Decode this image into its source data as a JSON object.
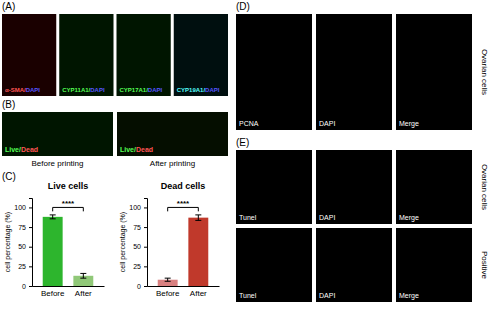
{
  "chart_data": [
    {
      "type": "bar",
      "title": "Live cells",
      "categories": [
        "Before",
        "After"
      ],
      "values": [
        88,
        13
      ],
      "errors": [
        2.5,
        3.0
      ],
      "colors": [
        "#2db52d",
        "#90c878"
      ],
      "ylabel": "cell percentage (%)",
      "ylim": [
        0,
        112
      ],
      "yticks": [
        0,
        25,
        50,
        75,
        100
      ],
      "annotations": [
        {
          "text": "****",
          "y": 100,
          "y0": 95
        }
      ]
    },
    {
      "type": "bar",
      "title": "Dead cells",
      "categories": [
        "Before",
        "After"
      ],
      "values": [
        8,
        87
      ],
      "errors": [
        2.0,
        3.5
      ],
      "colors": [
        "#d98080",
        "#c0392b"
      ],
      "ylabel": "cell percentage (%)",
      "ylim": [
        0,
        112
      ],
      "yticks": [
        0,
        25,
        50,
        75,
        100
      ],
      "annotations": [
        {
          "text": "****",
          "y": 100,
          "y0": 95
        }
      ]
    }
  ],
  "panels": [
    {
      "label": "(A)",
      "images": [
        {
          "color": "#1a0000",
          "labels": [
            {
              "text": "α-SMA/",
              "color": "#ff5555"
            },
            {
              "text": "DAPI",
              "color": "#5555ff"
            }
          ]
        },
        {
          "color": "#001500",
          "labels": [
            {
              "text": "CYP11A1/",
              "color": "#55ff55"
            },
            {
              "text": "DAPI",
              "color": "#5555ff"
            }
          ]
        },
        {
          "color": "#001500",
          "labels": [
            {
              "text": "CYP17A1/",
              "color": "#55ff55"
            },
            {
              "text": "DAPI",
              "color": "#5555ff"
            }
          ]
        },
        {
          "color": "#000f0f",
          "labels": [
            {
              "text": "CYP19A1/",
              "color": "#55ffff"
            },
            {
              "text": "DAPI",
              "color": "#5555ff"
            }
          ]
        }
      ]
    },
    {
      "label": "(B)",
      "images": [
        {
          "color": "#001500",
          "labels": [
            {
              "text": "Live/",
              "color": "#55ff55"
            },
            {
              "text": "Dead",
              "color": "#ff5555"
            }
          ],
          "caption": "Before printing"
        },
        {
          "color": "#050e00",
          "labels": [
            {
              "text": "Live/",
              "color": "#55ff55"
            },
            {
              "text": "Dead",
              "color": "#ff5555"
            }
          ],
          "caption": "After printing"
        }
      ]
    },
    {
      "label": "(C)"
    },
    {
      "label": "(D)",
      "side_label": "Ovarian cells",
      "images": [
        {
          "color": "#000000",
          "labels": [
            {
              "text": "PCNA",
              "color": "#ffffff"
            }
          ]
        },
        {
          "color": "#000000",
          "labels": [
            {
              "text": "DAPI",
              "color": "#ffffff"
            }
          ]
        },
        {
          "color": "#000000",
          "labels": [
            {
              "text": "Merge",
              "color": "#ffffff"
            }
          ]
        }
      ]
    },
    {
      "label": "(E)",
      "rows": [
        {
          "side_label": "Ovarian cells",
          "images": [
            {
              "color": "#000000",
              "labels": [
                {
                  "text": "Tunel",
                  "color": "#ffffff"
                }
              ]
            },
            {
              "color": "#000000",
              "labels": [
                {
                  "text": "DAPI",
                  "color": "#ffffff"
                }
              ]
            },
            {
              "color": "#000000",
              "labels": [
                {
                  "text": "Merge",
                  "color": "#ffffff"
                }
              ]
            }
          ]
        },
        {
          "side_label": "Positive",
          "images": [
            {
              "color": "#000000",
              "labels": [
                {
                  "text": "Tunel",
                  "color": "#ffffff"
                }
              ]
            },
            {
              "color": "#000000",
              "labels": [
                {
                  "text": "DAPI",
                  "color": "#ffffff"
                }
              ]
            },
            {
              "color": "#000000",
              "labels": [
                {
                  "text": "Merge",
                  "color": "#ffffff"
                }
              ]
            }
          ]
        }
      ]
    }
  ]
}
